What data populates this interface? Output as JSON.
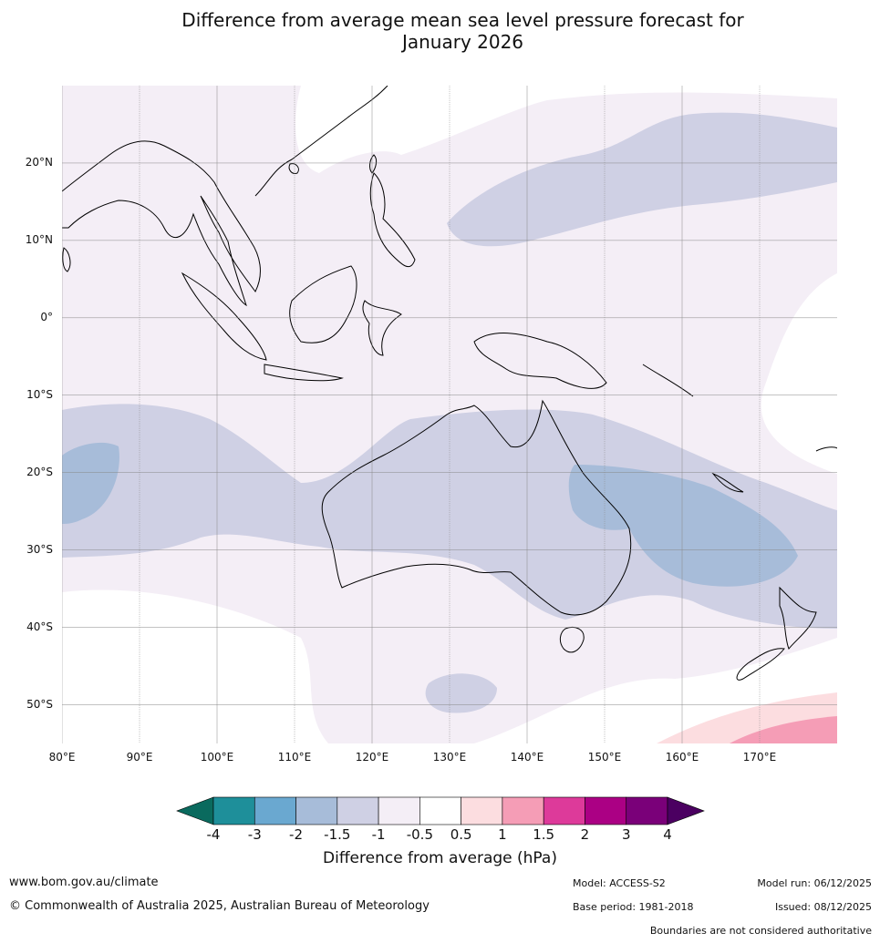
{
  "title": {
    "line1": "Difference from average mean sea level pressure forecast for",
    "line2": "January 2026"
  },
  "map": {
    "lat_labels": [
      "20°N",
      "10°N",
      "0°",
      "10°S",
      "20°S",
      "30°S",
      "40°S",
      "50°S"
    ],
    "lat_values": [
      20,
      10,
      0,
      -10,
      -20,
      -30,
      -40,
      -50
    ],
    "lon_labels": [
      "80°E",
      "90°E",
      "100°E",
      "110°E",
      "120°E",
      "130°E",
      "140°E",
      "150°E",
      "160°E",
      "170°E"
    ],
    "lon_values": [
      80,
      90,
      100,
      110,
      120,
      130,
      140,
      150,
      160,
      170
    ],
    "extent": {
      "lon_min": 80,
      "lon_max": 180,
      "lat_min": -55,
      "lat_max": 30
    }
  },
  "colorbar": {
    "title": "Difference from average (hPa)",
    "ticks": [
      "-4",
      "-3",
      "-2",
      "-1.5",
      "-1",
      "-0.5",
      "0.5",
      "1",
      "1.5",
      "2",
      "3",
      "4"
    ],
    "colors": [
      "#1e8f9a",
      "#6aa8d0",
      "#a7bcd9",
      "#cfd0e4",
      "#f4eef6",
      "#ffffff",
      "#fcdde0",
      "#f59db6",
      "#dd3a9a",
      "#ab0084",
      "#7a0079"
    ],
    "extend_low_color": "#0a6a5e",
    "extend_high_color": "#4b0061"
  },
  "footer": {
    "website": "www.bom.gov.au/climate",
    "copyright": "© Commonwealth of Australia 2025, Australian Bureau of Meteorology",
    "model": "Model: ACCESS-S2",
    "base_period": "Base period: 1981-2018",
    "model_run": "Model run: 06/12/2025",
    "issued": "Issued: 08/12/2025",
    "disclaimer": "Boundaries are not considered authoritative"
  }
}
